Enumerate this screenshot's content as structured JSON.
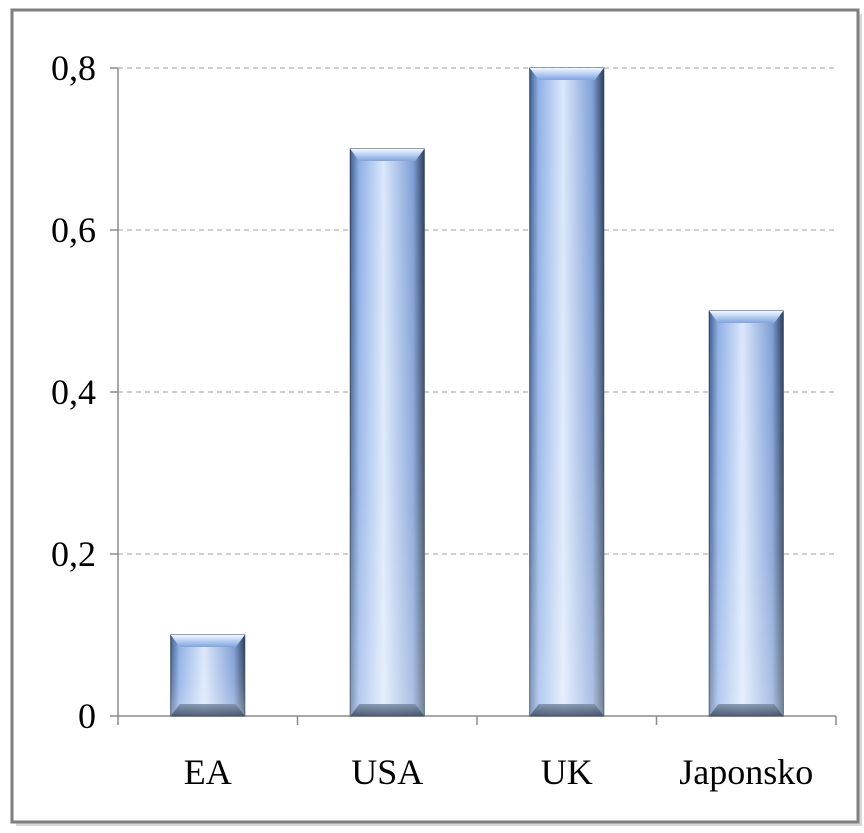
{
  "chart_data": {
    "type": "bar",
    "categories": [
      "EA",
      "USA",
      "UK",
      "Japonsko"
    ],
    "values": [
      0.1,
      0.7,
      0.8,
      0.5
    ],
    "ylim": [
      0,
      0.8
    ],
    "yticks": [
      0,
      0.2,
      0.4,
      0.6,
      0.8
    ],
    "ytick_labels": [
      "0",
      "0,2",
      "0,4",
      "0,6",
      "0,8"
    ],
    "grid": "horizontal dashed",
    "legend": "none",
    "colors": {
      "bar_light": "#dbe7fb",
      "bar_mid": "#8fb0e6",
      "bar_dark": "#4a6fa8",
      "bar_edge": "#2d3f5c",
      "grid": "#b0b0b0",
      "axis": "#8c8c8c",
      "frame": "#7f7f7f"
    }
  }
}
